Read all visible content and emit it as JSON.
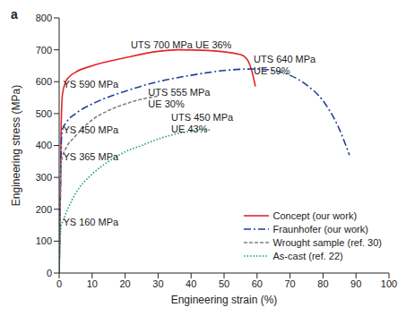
{
  "chart_data": {
    "type": "line",
    "title": "a",
    "x_label": "Engineering strain (%)",
    "y_label": "Engineering stress (MPa)",
    "xlim": [
      0,
      100
    ],
    "xticks": [
      0,
      10,
      20,
      30,
      40,
      50,
      60,
      70,
      80,
      90,
      100
    ],
    "ylim": [
      0,
      800
    ],
    "yticks": [
      0,
      100,
      200,
      300,
      400,
      500,
      600,
      700,
      800
    ],
    "grid": false,
    "legend": "lower right",
    "series": [
      {
        "name": "Concept (our work)",
        "color": "#e3262b",
        "line_style": "solid",
        "x": [
          0,
          0.3,
          0.6,
          1,
          2,
          3,
          5,
          10,
          20,
          30,
          36,
          45,
          55,
          57,
          58.5,
          59.5
        ],
        "values": [
          0,
          200,
          450,
          560,
          600,
          615,
          630,
          650,
          675,
          695,
          700,
          698,
          685,
          670,
          630,
          585
        ]
      },
      {
        "name": "Fraunhofer (our work)",
        "color": "#1f3f9a",
        "line_style": "dashdot",
        "x": [
          0,
          0.3,
          0.7,
          1,
          2,
          5,
          10,
          20,
          30,
          40,
          50,
          59,
          65,
          70,
          75,
          80,
          85,
          88
        ],
        "values": [
          0,
          200,
          420,
          450,
          470,
          500,
          530,
          570,
          600,
          620,
          635,
          640,
          635,
          620,
          590,
          540,
          450,
          370
        ]
      },
      {
        "name": "Wrought sample (ref. 30)",
        "color": "#808080",
        "line_style": "dashed",
        "x": [
          0,
          0.3,
          0.6,
          1,
          2,
          5,
          10,
          15,
          20,
          25,
          30
        ],
        "values": [
          0,
          200,
          340,
          365,
          390,
          430,
          480,
          510,
          530,
          545,
          555
        ]
      },
      {
        "name": "As-cast (ref. 22)",
        "color": "#1e9e6e",
        "line_style": "dotted",
        "x": [
          0,
          0.3,
          0.6,
          1,
          3,
          5,
          10,
          15,
          20,
          25,
          30,
          35,
          40,
          43,
          46
        ],
        "values": [
          0,
          100,
          150,
          160,
          210,
          250,
          310,
          350,
          380,
          400,
          420,
          435,
          445,
          450,
          448
        ]
      }
    ],
    "annotations": [
      {
        "text": [
          "UTS 700 MPa UE 36%"
        ]
      },
      {
        "text": [
          "YS 590 MPa"
        ]
      },
      {
        "text": [
          "UTS 640 MPa",
          "UE 59%"
        ]
      },
      {
        "text": [
          "YS 450 MPa"
        ]
      },
      {
        "text": [
          "UTS 555 MPa",
          "UE 30%"
        ]
      },
      {
        "text": [
          "YS 365 MPa"
        ]
      },
      {
        "text": [
          "UTS 450 MPa",
          "UE 43%"
        ]
      },
      {
        "text": [
          "YS 160 MPa"
        ]
      }
    ]
  }
}
